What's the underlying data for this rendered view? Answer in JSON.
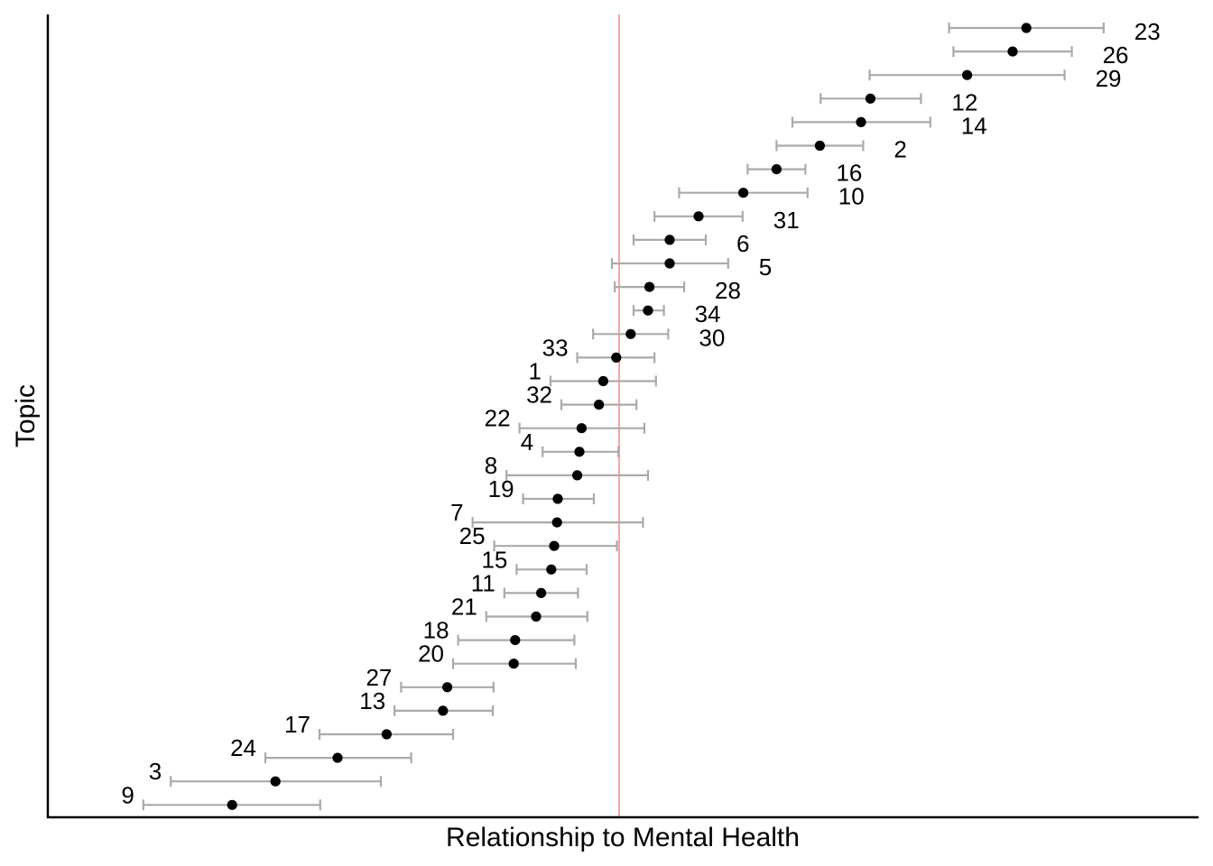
{
  "chart_data": {
    "type": "scatter",
    "subtype": "forest-plot-with-confidence-intervals",
    "title": "",
    "xlabel": "Relationship to Mental Health",
    "ylabel": "Topic",
    "x_ticks_shown": false,
    "y_ticks_shown": false,
    "grid": false,
    "reference_line": {
      "x": 0,
      "color": "#f4a6a6"
    },
    "xlim": [
      -0.8,
      0.8
    ],
    "colors": {
      "point": "#000000",
      "error_bar": "#aaaaaa",
      "reference_line": "#f4a6a6"
    },
    "points": [
      {
        "label": "23",
        "estimate": 0.564,
        "lower": 0.457,
        "upper": 0.671
      },
      {
        "label": "26",
        "estimate": 0.545,
        "lower": 0.463,
        "upper": 0.627
      },
      {
        "label": "29",
        "estimate": 0.482,
        "lower": 0.347,
        "upper": 0.617
      },
      {
        "label": "12",
        "estimate": 0.348,
        "lower": 0.279,
        "upper": 0.418
      },
      {
        "label": "14",
        "estimate": 0.335,
        "lower": 0.24,
        "upper": 0.431
      },
      {
        "label": "2",
        "estimate": 0.278,
        "lower": 0.218,
        "upper": 0.338
      },
      {
        "label": "16",
        "estimate": 0.218,
        "lower": 0.178,
        "upper": 0.258
      },
      {
        "label": "10",
        "estimate": 0.172,
        "lower": 0.083,
        "upper": 0.261
      },
      {
        "label": "31",
        "estimate": 0.11,
        "lower": 0.049,
        "upper": 0.171
      },
      {
        "label": "6",
        "estimate": 0.07,
        "lower": 0.02,
        "upper": 0.12
      },
      {
        "label": "5",
        "estimate": 0.07,
        "lower": -0.01,
        "upper": 0.151
      },
      {
        "label": "28",
        "estimate": 0.042,
        "lower": -0.006,
        "upper": 0.09
      },
      {
        "label": "34",
        "estimate": 0.04,
        "lower": 0.02,
        "upper": 0.062
      },
      {
        "label": "30",
        "estimate": 0.016,
        "lower": -0.036,
        "upper": 0.068
      },
      {
        "label": "33",
        "estimate": -0.004,
        "lower": -0.058,
        "upper": 0.049
      },
      {
        "label": "1",
        "estimate": -0.022,
        "lower": -0.095,
        "upper": 0.051
      },
      {
        "label": "32",
        "estimate": -0.028,
        "lower": -0.08,
        "upper": 0.024
      },
      {
        "label": "22",
        "estimate": -0.052,
        "lower": -0.138,
        "upper": 0.035
      },
      {
        "label": "4",
        "estimate": -0.055,
        "lower": -0.106,
        "upper": -0.001
      },
      {
        "label": "8",
        "estimate": -0.058,
        "lower": -0.156,
        "upper": 0.04
      },
      {
        "label": "19",
        "estimate": -0.085,
        "lower": -0.133,
        "upper": -0.035
      },
      {
        "label": "7",
        "estimate": -0.086,
        "lower": -0.203,
        "upper": 0.033
      },
      {
        "label": "25",
        "estimate": -0.09,
        "lower": -0.173,
        "upper": -0.003
      },
      {
        "label": "15",
        "estimate": -0.094,
        "lower": -0.142,
        "upper": -0.045
      },
      {
        "label": "11",
        "estimate": -0.108,
        "lower": -0.159,
        "upper": -0.057
      },
      {
        "label": "21",
        "estimate": -0.115,
        "lower": -0.184,
        "upper": -0.044
      },
      {
        "label": "18",
        "estimate": -0.144,
        "lower": -0.223,
        "upper": -0.062
      },
      {
        "label": "20",
        "estimate": -0.146,
        "lower": -0.23,
        "upper": -0.06
      },
      {
        "label": "27",
        "estimate": -0.238,
        "lower": -0.302,
        "upper": -0.174
      },
      {
        "label": "13",
        "estimate": -0.244,
        "lower": -0.311,
        "upper": -0.175
      },
      {
        "label": "17",
        "estimate": -0.322,
        "lower": -0.415,
        "upper": -0.23
      },
      {
        "label": "24",
        "estimate": -0.39,
        "lower": -0.49,
        "upper": -0.288
      },
      {
        "label": "3",
        "estimate": -0.476,
        "lower": -0.621,
        "upper": -0.33
      },
      {
        "label": "9",
        "estimate": -0.536,
        "lower": -0.659,
        "upper": -0.414
      }
    ]
  }
}
